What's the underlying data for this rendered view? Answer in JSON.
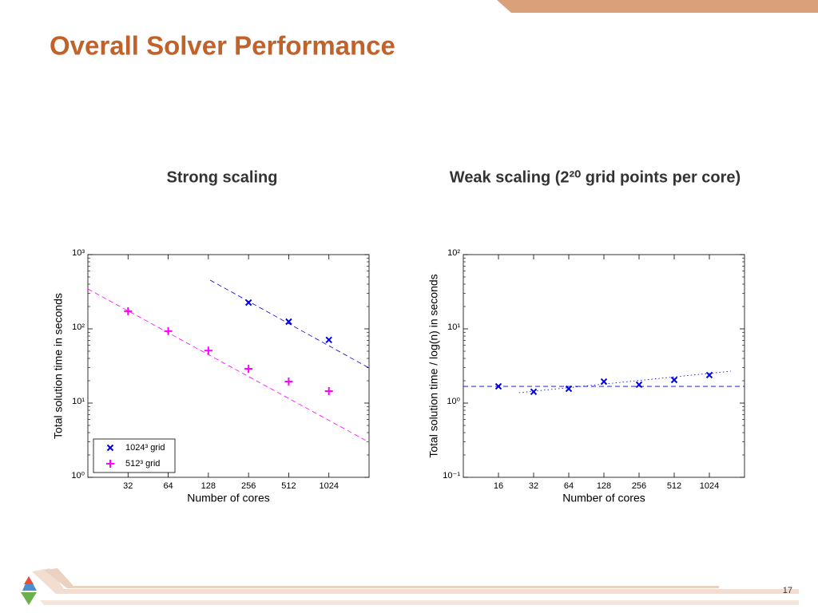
{
  "title": "Overall Solver Performance",
  "page_number": "17",
  "chart_data": [
    {
      "type": "scatter",
      "title": "Strong scaling",
      "x_label": "Number of cores",
      "y_label": "Total solution time in seconds",
      "log_x": true,
      "log_y": true,
      "legend": "lower left",
      "xlim": [
        16,
        2048
      ],
      "xticks": [
        32,
        64,
        128,
        256,
        512,
        1024
      ],
      "ylim": [
        1,
        1000
      ],
      "yticks": [
        {
          "value": 1,
          "label": "10⁰"
        },
        {
          "value": 10,
          "label": "10¹"
        },
        {
          "value": 100,
          "label": "10²"
        },
        {
          "value": 1000,
          "label": "10³"
        }
      ],
      "series": [
        {
          "name": "1024³ grid",
          "color": "#0000e0",
          "marker": "x",
          "x": [
            256,
            512,
            1024
          ],
          "values": [
            226,
            125,
            71
          ]
        },
        {
          "name": "512³ grid",
          "color": "#ff00ff",
          "marker": "+",
          "x": [
            32,
            64,
            128,
            256,
            512,
            1024
          ],
          "values": [
            173,
            93,
            51,
            29,
            19.5,
            14.5
          ]
        }
      ],
      "reference_lines": [
        {
          "color": "#0000e0",
          "dash": "dashed",
          "x": [
            132,
            2048
          ],
          "values": [
            453,
            29.7
          ]
        },
        {
          "color": "#ff00ff",
          "dash": "dashed",
          "x": [
            16,
            2048
          ],
          "values": [
            345,
            2.97
          ]
        }
      ]
    },
    {
      "type": "scatter",
      "title": "Weak scaling (2²⁰ grid points per core)",
      "x_label": "Number of cores",
      "y_label": "Total solution time / log(n) in seconds",
      "log_x": true,
      "log_y": true,
      "xlim": [
        8,
        2048
      ],
      "xticks": [
        16,
        32,
        64,
        128,
        256,
        512,
        1024
      ],
      "ylim": [
        0.1,
        100
      ],
      "yticks": [
        {
          "value": 0.1,
          "label": "10⁻¹"
        },
        {
          "value": 1,
          "label": "10⁰"
        },
        {
          "value": 10,
          "label": "10¹"
        },
        {
          "value": 100,
          "label": "10²"
        }
      ],
      "series": [
        {
          "color": "#0000e0",
          "marker": "x",
          "x": [
            16,
            32,
            64,
            128,
            256,
            512,
            1024
          ],
          "values": [
            1.68,
            1.42,
            1.56,
            1.95,
            1.77,
            2.05,
            2.38
          ]
        }
      ],
      "reference_lines": [
        {
          "color": "#0000e0",
          "dash": "dashed",
          "x": [
            8,
            2048
          ],
          "values": [
            1.68,
            1.68
          ]
        },
        {
          "color": "#0000e0",
          "dash": "dotted",
          "x": [
            24,
            1565
          ],
          "values": [
            1.38,
            2.69
          ]
        }
      ]
    }
  ]
}
